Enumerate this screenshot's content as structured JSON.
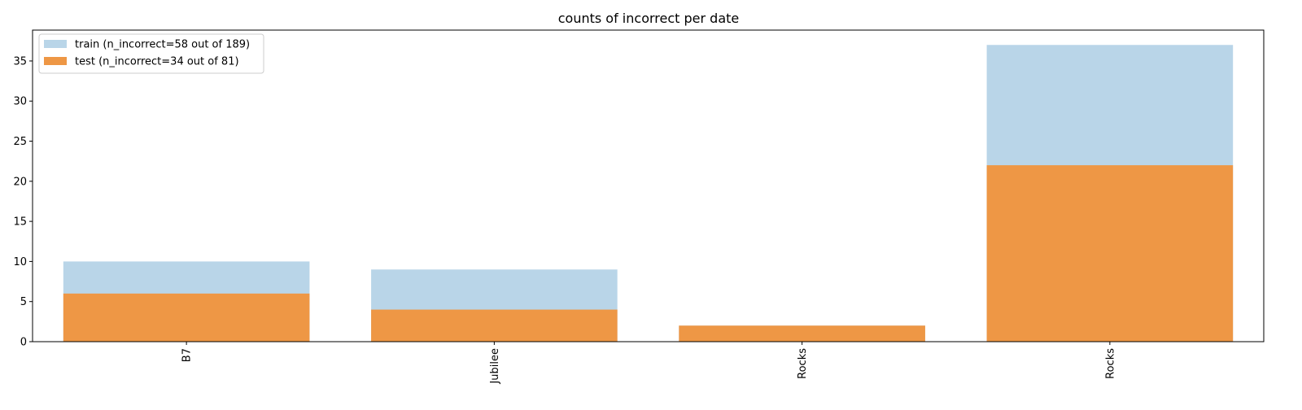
{
  "chart_data": {
    "type": "bar",
    "title": "counts of incorrect per date",
    "xlabel": "",
    "ylabel": "",
    "categories": [
      "B7",
      "Jubilee",
      "Rocks",
      "Rocks"
    ],
    "series": [
      {
        "name": "train (n_incorrect=58 out of 189)",
        "values": [
          10,
          9,
          2,
          37
        ],
        "color": "#b9d5e8"
      },
      {
        "name": "test (n_incorrect=34 out of 81)",
        "values": [
          6,
          4,
          2,
          22
        ],
        "color": "#ee9745"
      }
    ],
    "ylim": [
      0,
      38.85
    ],
    "yticks": [
      0,
      5,
      10,
      15,
      20,
      25,
      30,
      35
    ],
    "grid": false,
    "legend_position": "top-left",
    "xtick_rotation": "vertical",
    "overlaid": true
  }
}
